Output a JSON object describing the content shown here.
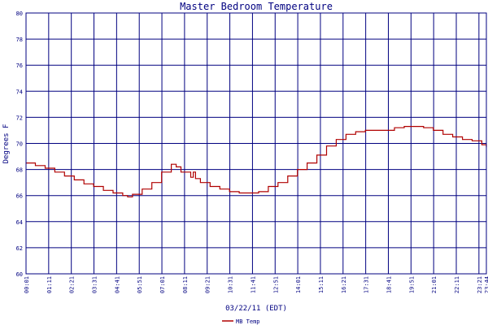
{
  "chart_data": {
    "type": "line",
    "title": "Master Bedroom Temperature",
    "xlabel": "03/22/11 (EDT)",
    "ylabel": "Degrees F",
    "ylim": [
      60,
      80
    ],
    "y_ticks": [
      60,
      62,
      64,
      66,
      68,
      70,
      72,
      74,
      76,
      78,
      80
    ],
    "x_ticks": [
      "00:01",
      "01:11",
      "02:21",
      "03:31",
      "04:41",
      "05:51",
      "07:01",
      "08:11",
      "09:21",
      "10:31",
      "11:41",
      "12:51",
      "14:01",
      "15:11",
      "16:21",
      "17:31",
      "18:41",
      "19:51",
      "21:01",
      "22:11",
      "23:21",
      "23:44"
    ],
    "x_tick_minutes": [
      1,
      71,
      141,
      211,
      281,
      351,
      421,
      491,
      561,
      631,
      701,
      771,
      841,
      911,
      981,
      1051,
      1121,
      1191,
      1261,
      1331,
      1401,
      1424
    ],
    "grid": true,
    "legend_position": "bottom-left",
    "colors": {
      "grid": "#000080",
      "line": "#b00000",
      "text": "#000080"
    },
    "series": [
      {
        "name": "MB Temp",
        "x": [
          "00:01",
          "00:30",
          "01:00",
          "01:30",
          "02:00",
          "02:30",
          "03:00",
          "03:30",
          "04:00",
          "04:30",
          "05:00",
          "05:15",
          "05:30",
          "06:00",
          "06:30",
          "07:00",
          "07:30",
          "07:45",
          "08:00",
          "08:30",
          "08:38",
          "08:45",
          "09:00",
          "09:30",
          "10:00",
          "10:30",
          "11:00",
          "11:30",
          "12:00",
          "12:30",
          "13:00",
          "13:30",
          "14:00",
          "14:30",
          "15:00",
          "15:30",
          "16:00",
          "16:30",
          "17:00",
          "17:30",
          "18:00",
          "18:30",
          "19:00",
          "19:30",
          "20:00",
          "20:30",
          "21:00",
          "21:30",
          "22:00",
          "22:30",
          "23:00",
          "23:30",
          "23:44"
        ],
        "values": [
          68.5,
          68.3,
          68.1,
          67.8,
          67.5,
          67.2,
          66.9,
          66.7,
          66.4,
          66.2,
          66.0,
          65.9,
          66.1,
          66.5,
          67.0,
          67.8,
          68.4,
          68.2,
          67.8,
          67.4,
          67.8,
          67.3,
          67.0,
          66.7,
          66.5,
          66.3,
          66.2,
          66.2,
          66.3,
          66.7,
          67.0,
          67.5,
          68.0,
          68.5,
          69.1,
          69.8,
          70.3,
          70.7,
          70.9,
          71.0,
          71.0,
          71.0,
          71.2,
          71.3,
          71.3,
          71.2,
          71.0,
          70.7,
          70.5,
          70.3,
          70.2,
          69.9,
          69.7
        ]
      }
    ]
  }
}
